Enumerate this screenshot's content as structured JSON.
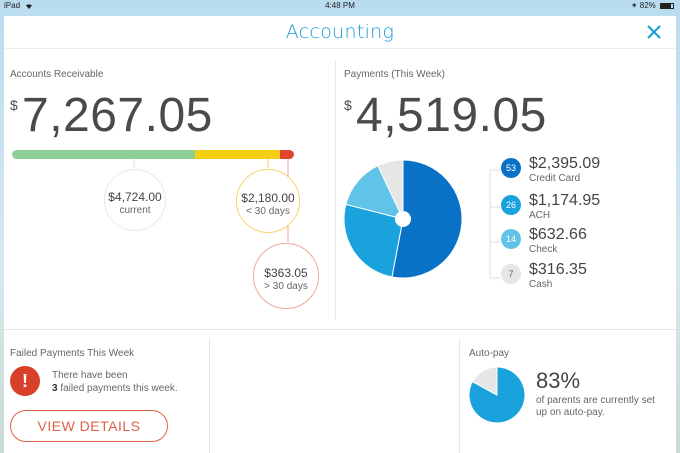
{
  "status_bar": {
    "device": "iPad",
    "time": "4:48 PM",
    "battery": "82%",
    "battery_level": 0.82
  },
  "header": {
    "title": "Accounting"
  },
  "accounts_receivable": {
    "label": "Accounts Receivable",
    "currency_symbol": "$",
    "total": "7,267.05",
    "segments": [
      {
        "name": "current",
        "value": 4724.0,
        "color": "#8ecf96"
      },
      {
        "name": "< 30 days",
        "value": 2180.0,
        "color": "#f5cf13"
      },
      {
        "name": "> 30 days",
        "value": 363.05,
        "color": "#e0452e"
      }
    ],
    "bubbles": [
      {
        "amount": "$4,724.00",
        "label": "current",
        "border": "#e8e8e8"
      },
      {
        "amount": "$2,180.00",
        "label": "< 30 days",
        "border": "#f5d66a"
      },
      {
        "amount": "$363.05",
        "label": "> 30 days",
        "border": "#efa79a"
      }
    ]
  },
  "payments": {
    "label": "Payments (This Week)",
    "currency_symbol": "$",
    "total": "4,519.05",
    "methods": [
      {
        "count": "53",
        "amount": "$2,395.09",
        "name": "Credit Card",
        "value": 2395.09,
        "color": "#0a72c6",
        "text_color": "#fff"
      },
      {
        "count": "26",
        "amount": "$1,174.95",
        "name": "ACH",
        "value": 1174.95,
        "color": "#1aa2dc",
        "text_color": "#fff"
      },
      {
        "count": "14",
        "amount": "$632.66",
        "name": "Check",
        "value": 632.66,
        "color": "#62c3e8",
        "text_color": "#fff"
      },
      {
        "count": "7",
        "amount": "$316.35",
        "name": "Cash",
        "value": 316.35,
        "color": "#e6e6e6",
        "text_color": "#666"
      }
    ]
  },
  "failed_payments": {
    "label": "Failed Payments This Week",
    "icon": "exclamation-icon",
    "text_prefix": "There have been",
    "count": "3",
    "text_suffix": "failed payments this week.",
    "button_label": "VIEW DETAILS"
  },
  "autopay": {
    "label": "Auto-pay",
    "percent_text": "83%",
    "percent_value": 83,
    "description": "of parents are currently set up on auto-pay.",
    "fill_color": "#1aa2dc",
    "empty_color": "#e6e6e6"
  }
}
